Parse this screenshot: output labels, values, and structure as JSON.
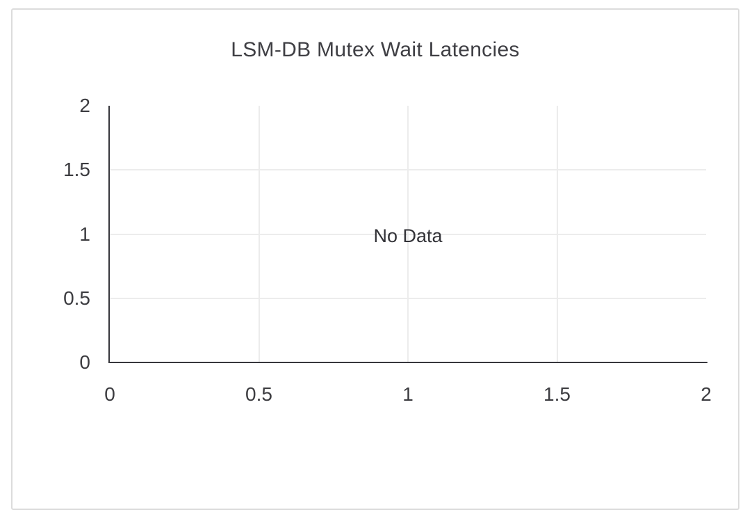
{
  "chart_data": {
    "type": "line",
    "title": "LSM-DB Mutex Wait Latencies",
    "no_data_label": "No Data",
    "series": [],
    "x_axis": {
      "label": "",
      "min": 0,
      "max": 2,
      "tick_values": [
        0,
        0.5,
        1,
        1.5,
        2
      ],
      "tick_labels": [
        "0",
        "0.5",
        "1",
        "1.5",
        "2"
      ]
    },
    "y_axis": {
      "label": "",
      "min": 0,
      "max": 2,
      "tick_values": [
        0,
        0.5,
        1,
        1.5,
        2
      ],
      "tick_labels": [
        "0",
        "0.5",
        "1",
        "1.5",
        "2"
      ]
    },
    "grid": true,
    "legend": false,
    "colors": {
      "background": "#ffffff",
      "card_border": "#dcdcdc",
      "axis_line": "#37373c",
      "grid_line": "#ececec",
      "tick_text": "#3c3c40",
      "title_text": "#3f3f44",
      "no_data_text": "#333338"
    }
  }
}
